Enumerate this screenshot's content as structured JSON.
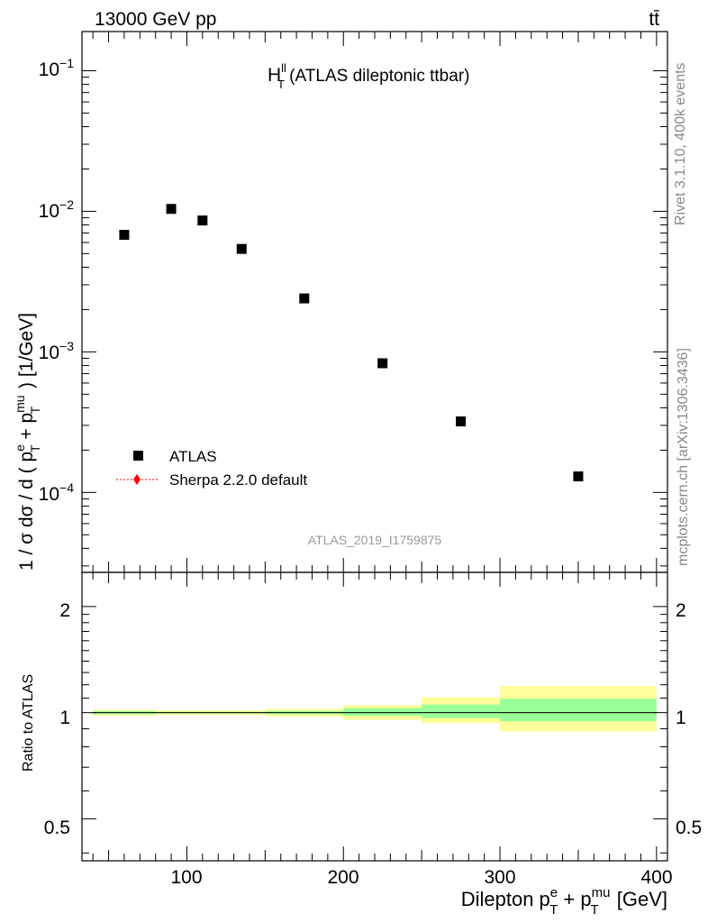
{
  "header": {
    "energy_label": "13000 GeV pp",
    "process_label": "tt̄"
  },
  "side_labels": {
    "rivet": "Rivet 3.1.10,  400k events",
    "mcplots": "mcplots.cern.ch [arXiv:1306.3436]"
  },
  "main_panel": {
    "title_main": "H",
    "title_sup": "ll",
    "title_sub": "T",
    "title_rest": " (ATLAS dileptonic ttbar)",
    "watermark": "ATLAS_2019_I1759875",
    "ylabel": "1 / σ  dσ / d ( p^e_T + p^mu_T ) [1/GeV]",
    "ylabel_parts": {
      "a": "1 / σ  dσ / d ( p",
      "b_sup": "e",
      "b_sub": "T",
      "c": " + p",
      "d_sup": "mu",
      "d_sub": "T",
      "e": " ) [1/GeV]"
    },
    "yticks": [
      {
        "base": "10",
        "exp": "−1"
      },
      {
        "base": "10",
        "exp": "−2"
      },
      {
        "base": "10",
        "exp": "−3"
      },
      {
        "base": "10",
        "exp": "−4"
      }
    ],
    "legend": [
      {
        "label": "ATLAS",
        "color": "#000000",
        "marker": "square"
      },
      {
        "label": "Sherpa 2.2.0 default",
        "color": "#ff0000",
        "marker": "diamond"
      }
    ]
  },
  "ratio_panel": {
    "ylabel": "Ratio to ATLAS",
    "yticks": [
      "0.5",
      "1",
      "2"
    ]
  },
  "xaxis": {
    "label_main": "Dilepton p",
    "label_sup1": "e",
    "label_sub1": "T",
    "label_mid": " + p",
    "label_sup2": "mu",
    "label_sub2": "T",
    "label_end": " [GeV]",
    "ticks": [
      "100",
      "200",
      "300",
      "400"
    ]
  },
  "chart_data": [
    {
      "type": "scatter",
      "title": "H^ll_T (ATLAS dileptonic ttbar)",
      "xlabel": "Dilepton p^e_T + p^mu_T [GeV]",
      "ylabel": "1 / σ dσ / d ( p^e_T + p^mu_T ) [1/GeV]",
      "xlim": [
        33,
        407
      ],
      "ylim": [
        2.7e-05,
        0.19
      ],
      "yscale": "log",
      "series": [
        {
          "name": "ATLAS",
          "color": "#000000",
          "marker": "square",
          "x": [
            60,
            90,
            110,
            135,
            175,
            225,
            275,
            350
          ],
          "x_edges": [
            [
              40,
              80
            ],
            [
              80,
              100
            ],
            [
              100,
              120
            ],
            [
              120,
              150
            ],
            [
              150,
              200
            ],
            [
              200,
              250
            ],
            [
              250,
              300
            ],
            [
              300,
              400
            ]
          ],
          "y": [
            0.0068,
            0.0104,
            0.0086,
            0.0054,
            0.0024,
            0.00083,
            0.00032,
            0.00013
          ]
        }
      ]
    },
    {
      "type": "area",
      "title": "",
      "xlabel": "Dilepton p^e_T + p^mu_T [GeV]",
      "ylabel": "Ratio to ATLAS",
      "xlim": [
        33,
        407
      ],
      "ylim": [
        0.38,
        2.5
      ],
      "yscale": "log",
      "reference_line": 1.0,
      "bands": [
        {
          "kind": "stat",
          "color": "#99ff99",
          "bins": [
            {
              "x": [
                40,
                80
              ],
              "lo": 0.99,
              "hi": 1.01
            },
            {
              "x": [
                80,
                100
              ],
              "lo": 0.995,
              "hi": 1.005
            },
            {
              "x": [
                100,
                120
              ],
              "lo": 0.995,
              "hi": 1.005
            },
            {
              "x": [
                120,
                150
              ],
              "lo": 0.995,
              "hi": 1.005
            },
            {
              "x": [
                150,
                200
              ],
              "lo": 0.99,
              "hi": 1.01
            },
            {
              "x": [
                200,
                250
              ],
              "lo": 0.98,
              "hi": 1.03
            },
            {
              "x": [
                250,
                300
              ],
              "lo": 0.965,
              "hi": 1.055
            },
            {
              "x": [
                300,
                400
              ],
              "lo": 0.945,
              "hi": 1.095
            }
          ]
        },
        {
          "kind": "total",
          "color": "#ffff99",
          "bins": [
            {
              "x": [
                40,
                80
              ],
              "lo": 0.98,
              "hi": 1.02
            },
            {
              "x": [
                80,
                100
              ],
              "lo": 0.985,
              "hi": 1.015
            },
            {
              "x": [
                100,
                120
              ],
              "lo": 0.985,
              "hi": 1.015
            },
            {
              "x": [
                120,
                150
              ],
              "lo": 0.985,
              "hi": 1.015
            },
            {
              "x": [
                150,
                200
              ],
              "lo": 0.975,
              "hi": 1.025
            },
            {
              "x": [
                200,
                250
              ],
              "lo": 0.955,
              "hi": 1.05
            },
            {
              "x": [
                250,
                300
              ],
              "lo": 0.935,
              "hi": 1.105
            },
            {
              "x": [
                300,
                400
              ],
              "lo": 0.885,
              "hi": 1.19
            }
          ]
        }
      ]
    }
  ]
}
